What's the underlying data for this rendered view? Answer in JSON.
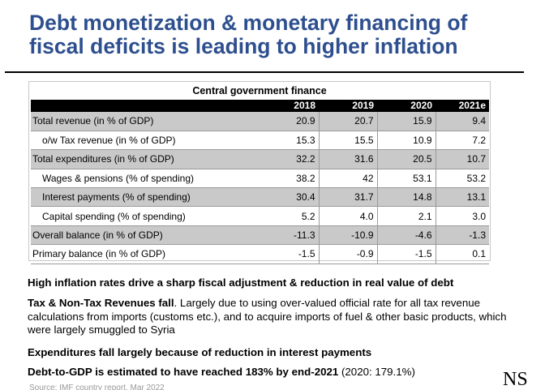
{
  "slide": {
    "title_line1": "Debt monetization & monetary financing of",
    "title_line2": "fiscal deficits is leading to higher inflation",
    "logo_text": "NS"
  },
  "table": {
    "caption": "Central government finance",
    "headers": [
      "",
      "2018",
      "2019",
      "2020",
      "2021e"
    ],
    "rows": [
      {
        "label": "Total revenue (in % of GDP)",
        "values": [
          "20.9",
          "20.7",
          "15.9",
          "9.4"
        ]
      },
      {
        "label": "o/w Tax revenue (in % of GDP)",
        "values": [
          "15.3",
          "15.5",
          "10.9",
          "7.2"
        ]
      },
      {
        "label": "Total expenditures (in % of GDP)",
        "values": [
          "32.2",
          "31.6",
          "20.5",
          "10.7"
        ]
      },
      {
        "label": "Wages & pensions (% of spending)",
        "values": [
          "38.2",
          "42",
          "53.1",
          "53.2"
        ]
      },
      {
        "label": "Interest payments  (% of spending)",
        "values": [
          "30.4",
          "31.7",
          "14.8",
          "13.1"
        ]
      },
      {
        "label": "Capital spending  (% of spending)",
        "values": [
          "5.2",
          "4.0",
          "2.1",
          "3.0"
        ]
      },
      {
        "label": "Overall balance (in % of GDP)",
        "values": [
          "-11.3",
          "-10.9",
          "-4.6",
          "-1.3"
        ]
      },
      {
        "label": "Primary balance (in % of GDP)",
        "values": [
          "-1.5",
          "-0.9",
          "-1.5",
          "0.1"
        ]
      }
    ]
  },
  "bullets": {
    "b1": "High inflation rates drive a sharp fiscal adjustment & reduction in real value of debt",
    "b2_bold": "Tax & Non-Tax Revenues fall",
    "b2_rest": ". Largely due to using over-valued official rate for all tax revenue calculations from imports (customs etc.), and to acquire imports of fuel & other basic products, which were largely smuggled to Syria",
    "b3": "Expenditures fall largely because of reduction in interest payments",
    "b4_bold": "Debt-to-GDP is estimated to have reached 183% by end-2021",
    "b4_rest": " (2020: 179.1%)"
  },
  "footer": {
    "text": "Source: IMF country report, Mar 2022"
  }
}
